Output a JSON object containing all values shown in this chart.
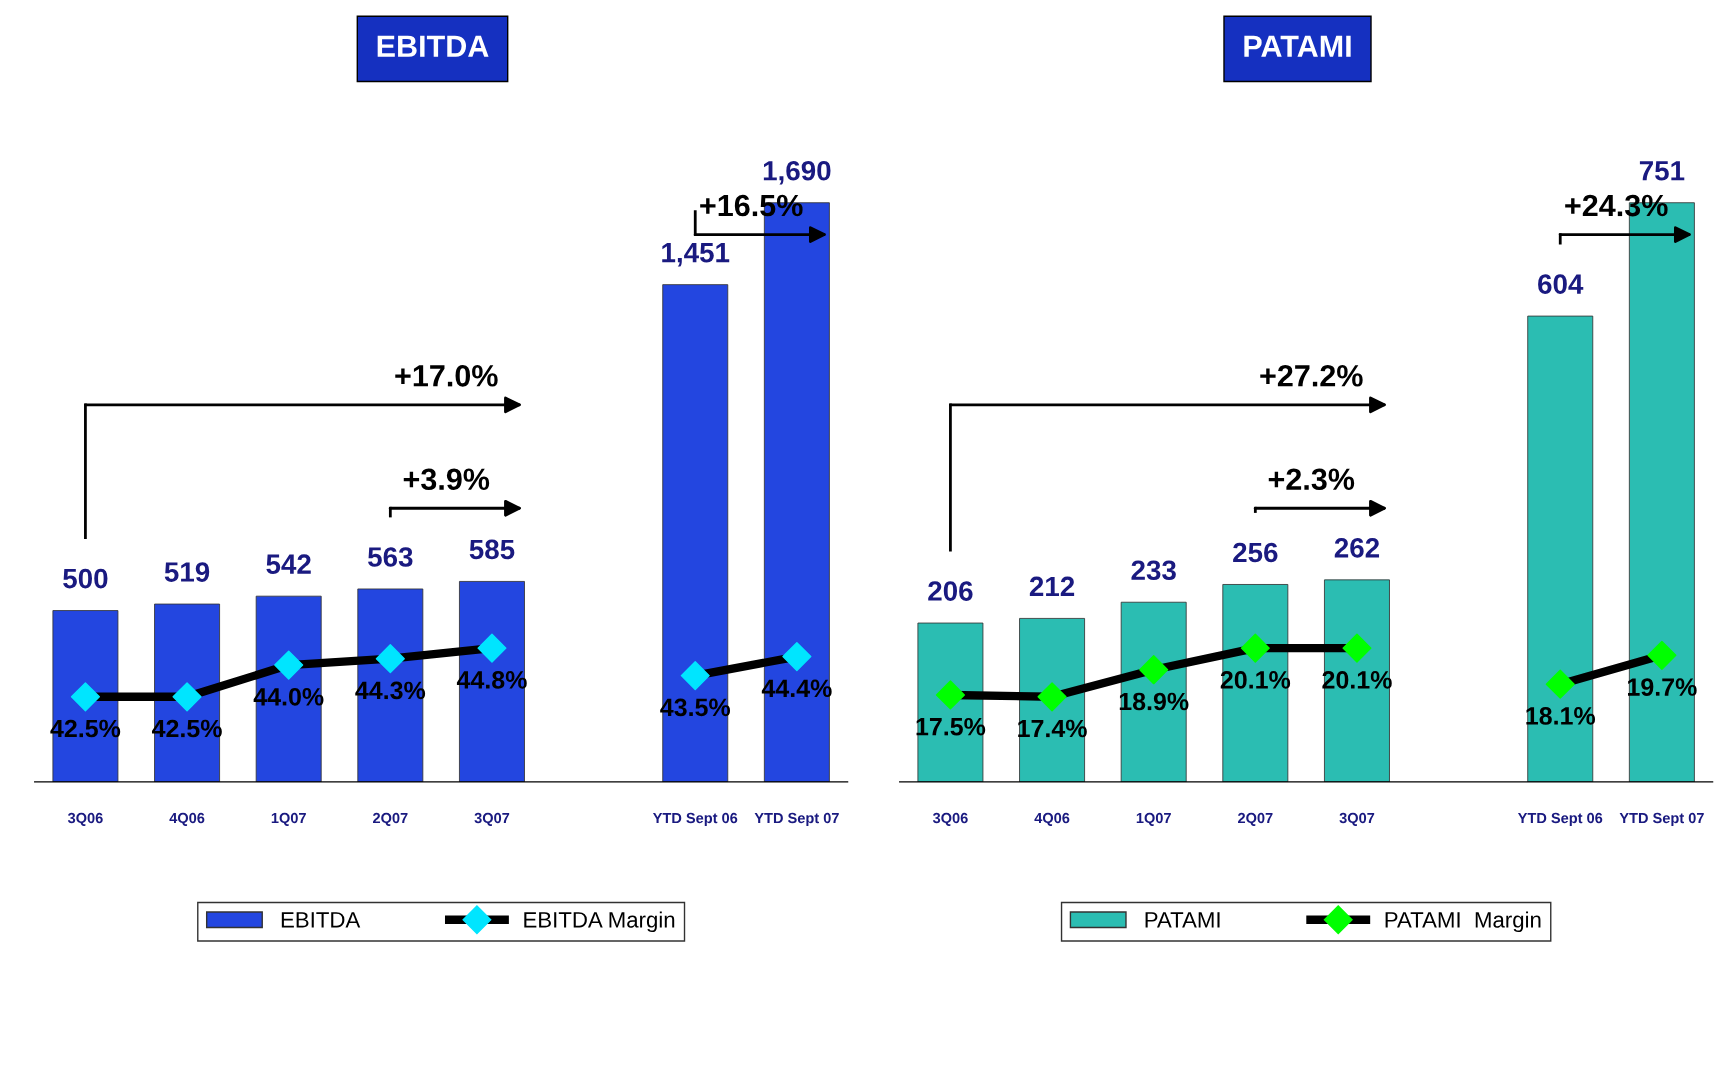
{
  "chart_data": [
    {
      "type": "bar",
      "title": "EBITDA",
      "categories": [
        "3Q06",
        "4Q06",
        "1Q07",
        "2Q07",
        "3Q07",
        null,
        "YTD Sept 06",
        "YTD Sept 07"
      ],
      "legend": "bottom",
      "grid": false,
      "marker": "diamond",
      "series": [
        {
          "name": "EBITDA",
          "type": "bar",
          "color": "#2346e0",
          "values": [
            500,
            519,
            542,
            563,
            585,
            null,
            1451,
            1690
          ],
          "value_labels": [
            "500",
            "519",
            "542",
            "563",
            "585",
            null,
            "1,451",
            "1,690"
          ]
        },
        {
          "name": "EBITDA Margin",
          "type": "line",
          "axis": "y2",
          "color": "#00e5ff",
          "values": [
            42.5,
            42.5,
            44.0,
            44.3,
            44.8,
            null,
            43.5,
            44.4
          ],
          "value_labels": [
            "42.5%",
            "42.5%",
            "44.0%",
            "44.3%",
            "44.8%",
            null,
            "43.5%",
            "44.4%"
          ]
        }
      ],
      "annotations": [
        "+17.0%",
        "+3.9%",
        "+16.5%"
      ]
    },
    {
      "type": "bar",
      "title": "PATAMI",
      "categories": [
        "3Q06",
        "4Q06",
        "1Q07",
        "2Q07",
        "3Q07",
        null,
        "YTD Sept 06",
        "YTD Sept 07"
      ],
      "legend": "bottom",
      "grid": false,
      "marker": "diamond",
      "series": [
        {
          "name": "PATAMI",
          "type": "bar",
          "color": "#2bbdb2",
          "values": [
            206,
            212,
            233,
            256,
            262,
            null,
            604,
            751
          ],
          "value_labels": [
            "206",
            "212",
            "233",
            "256",
            "262",
            null,
            "604",
            "751"
          ]
        },
        {
          "name": "PATAMI  Margin",
          "type": "line",
          "axis": "y2",
          "color": "#00ff00",
          "values": [
            17.5,
            17.4,
            18.9,
            20.1,
            20.1,
            null,
            18.1,
            19.7
          ],
          "value_labels": [
            "17.5%",
            "17.4%",
            "18.9%",
            "20.1%",
            "20.1%",
            null,
            "18.1%",
            "19.7%"
          ]
        }
      ],
      "annotations": [
        "+27.2%",
        "+2.3%",
        "+24.3%"
      ]
    }
  ]
}
